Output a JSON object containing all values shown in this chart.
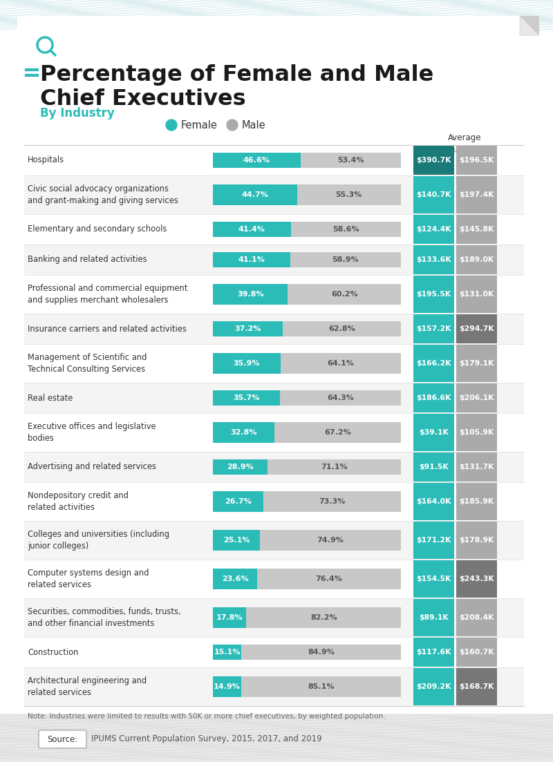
{
  "title_line1": "Percentage of Female and Male",
  "title_line2": "Chief Executives",
  "subtitle": "By Industry",
  "industries": [
    "Hospitals",
    "Civic social advocacy organizations\nand grant-making and giving services",
    "Elementary and secondary schools",
    "Banking and related activities",
    "Professional and commercial equipment\nand supplies merchant wholesalers",
    "Insurance carriers and related activities",
    "Management of Scientific and\nTechnical Consulting Services",
    "Real estate",
    "Executive offices and legislative\nbodies",
    "Advertising and related services",
    "Nondepository credit and\nrelated activities",
    "Colleges and universities (including\njunior colleges)",
    "Computer systems design and\nrelated services",
    "Securities, commodities, funds, trusts,\nand other financial investments",
    "Construction",
    "Architectural engineering and\nrelated services"
  ],
  "female_pct": [
    46.6,
    44.7,
    41.4,
    41.1,
    39.8,
    37.2,
    35.9,
    35.7,
    32.8,
    28.9,
    26.7,
    25.1,
    23.6,
    17.8,
    15.1,
    14.9
  ],
  "male_pct": [
    53.4,
    55.3,
    58.6,
    58.9,
    60.2,
    62.8,
    64.1,
    64.3,
    67.2,
    71.1,
    73.3,
    74.9,
    76.4,
    82.2,
    84.9,
    85.1
  ],
  "female_income": [
    "$390.7K",
    "$140.7K",
    "$124.4K",
    "$133.6K",
    "$195.5K",
    "$157.2K",
    "$166.2K",
    "$186.6K",
    "$39.1K",
    "$91.5K",
    "$164.0K",
    "$171.2K",
    "$154.5K",
    "$89.1K",
    "$117.6K",
    "$209.2K"
  ],
  "male_income": [
    "$196.5K",
    "$197.4K",
    "$145.8K",
    "$189.0K",
    "$131.0K",
    "$294.7K",
    "$179.1K",
    "$206.1K",
    "$105.9K",
    "$131.7K",
    "$185.9K",
    "$178.9K",
    "$243.3K",
    "$208.4K",
    "$160.7K",
    "$168.7K"
  ],
  "teal_color": "#2BBCB8",
  "teal_dark_color": "#1A7A78",
  "gray_bar_color": "#C8C8C8",
  "bg_color": "#FFFFFF",
  "note_text": "Note: Industries were limited to results with 50K or more chief executives, by weighted population.",
  "source_text": "IPUMS Current Population Survey, 2015, 2017, and 2019",
  "income_female_dark": [
    0
  ],
  "income_male_dark": [
    5,
    12,
    15
  ],
  "row_heights": [
    1,
    2,
    1,
    1,
    2,
    1,
    2,
    1,
    2,
    1,
    2,
    2,
    2,
    2,
    1,
    2
  ]
}
